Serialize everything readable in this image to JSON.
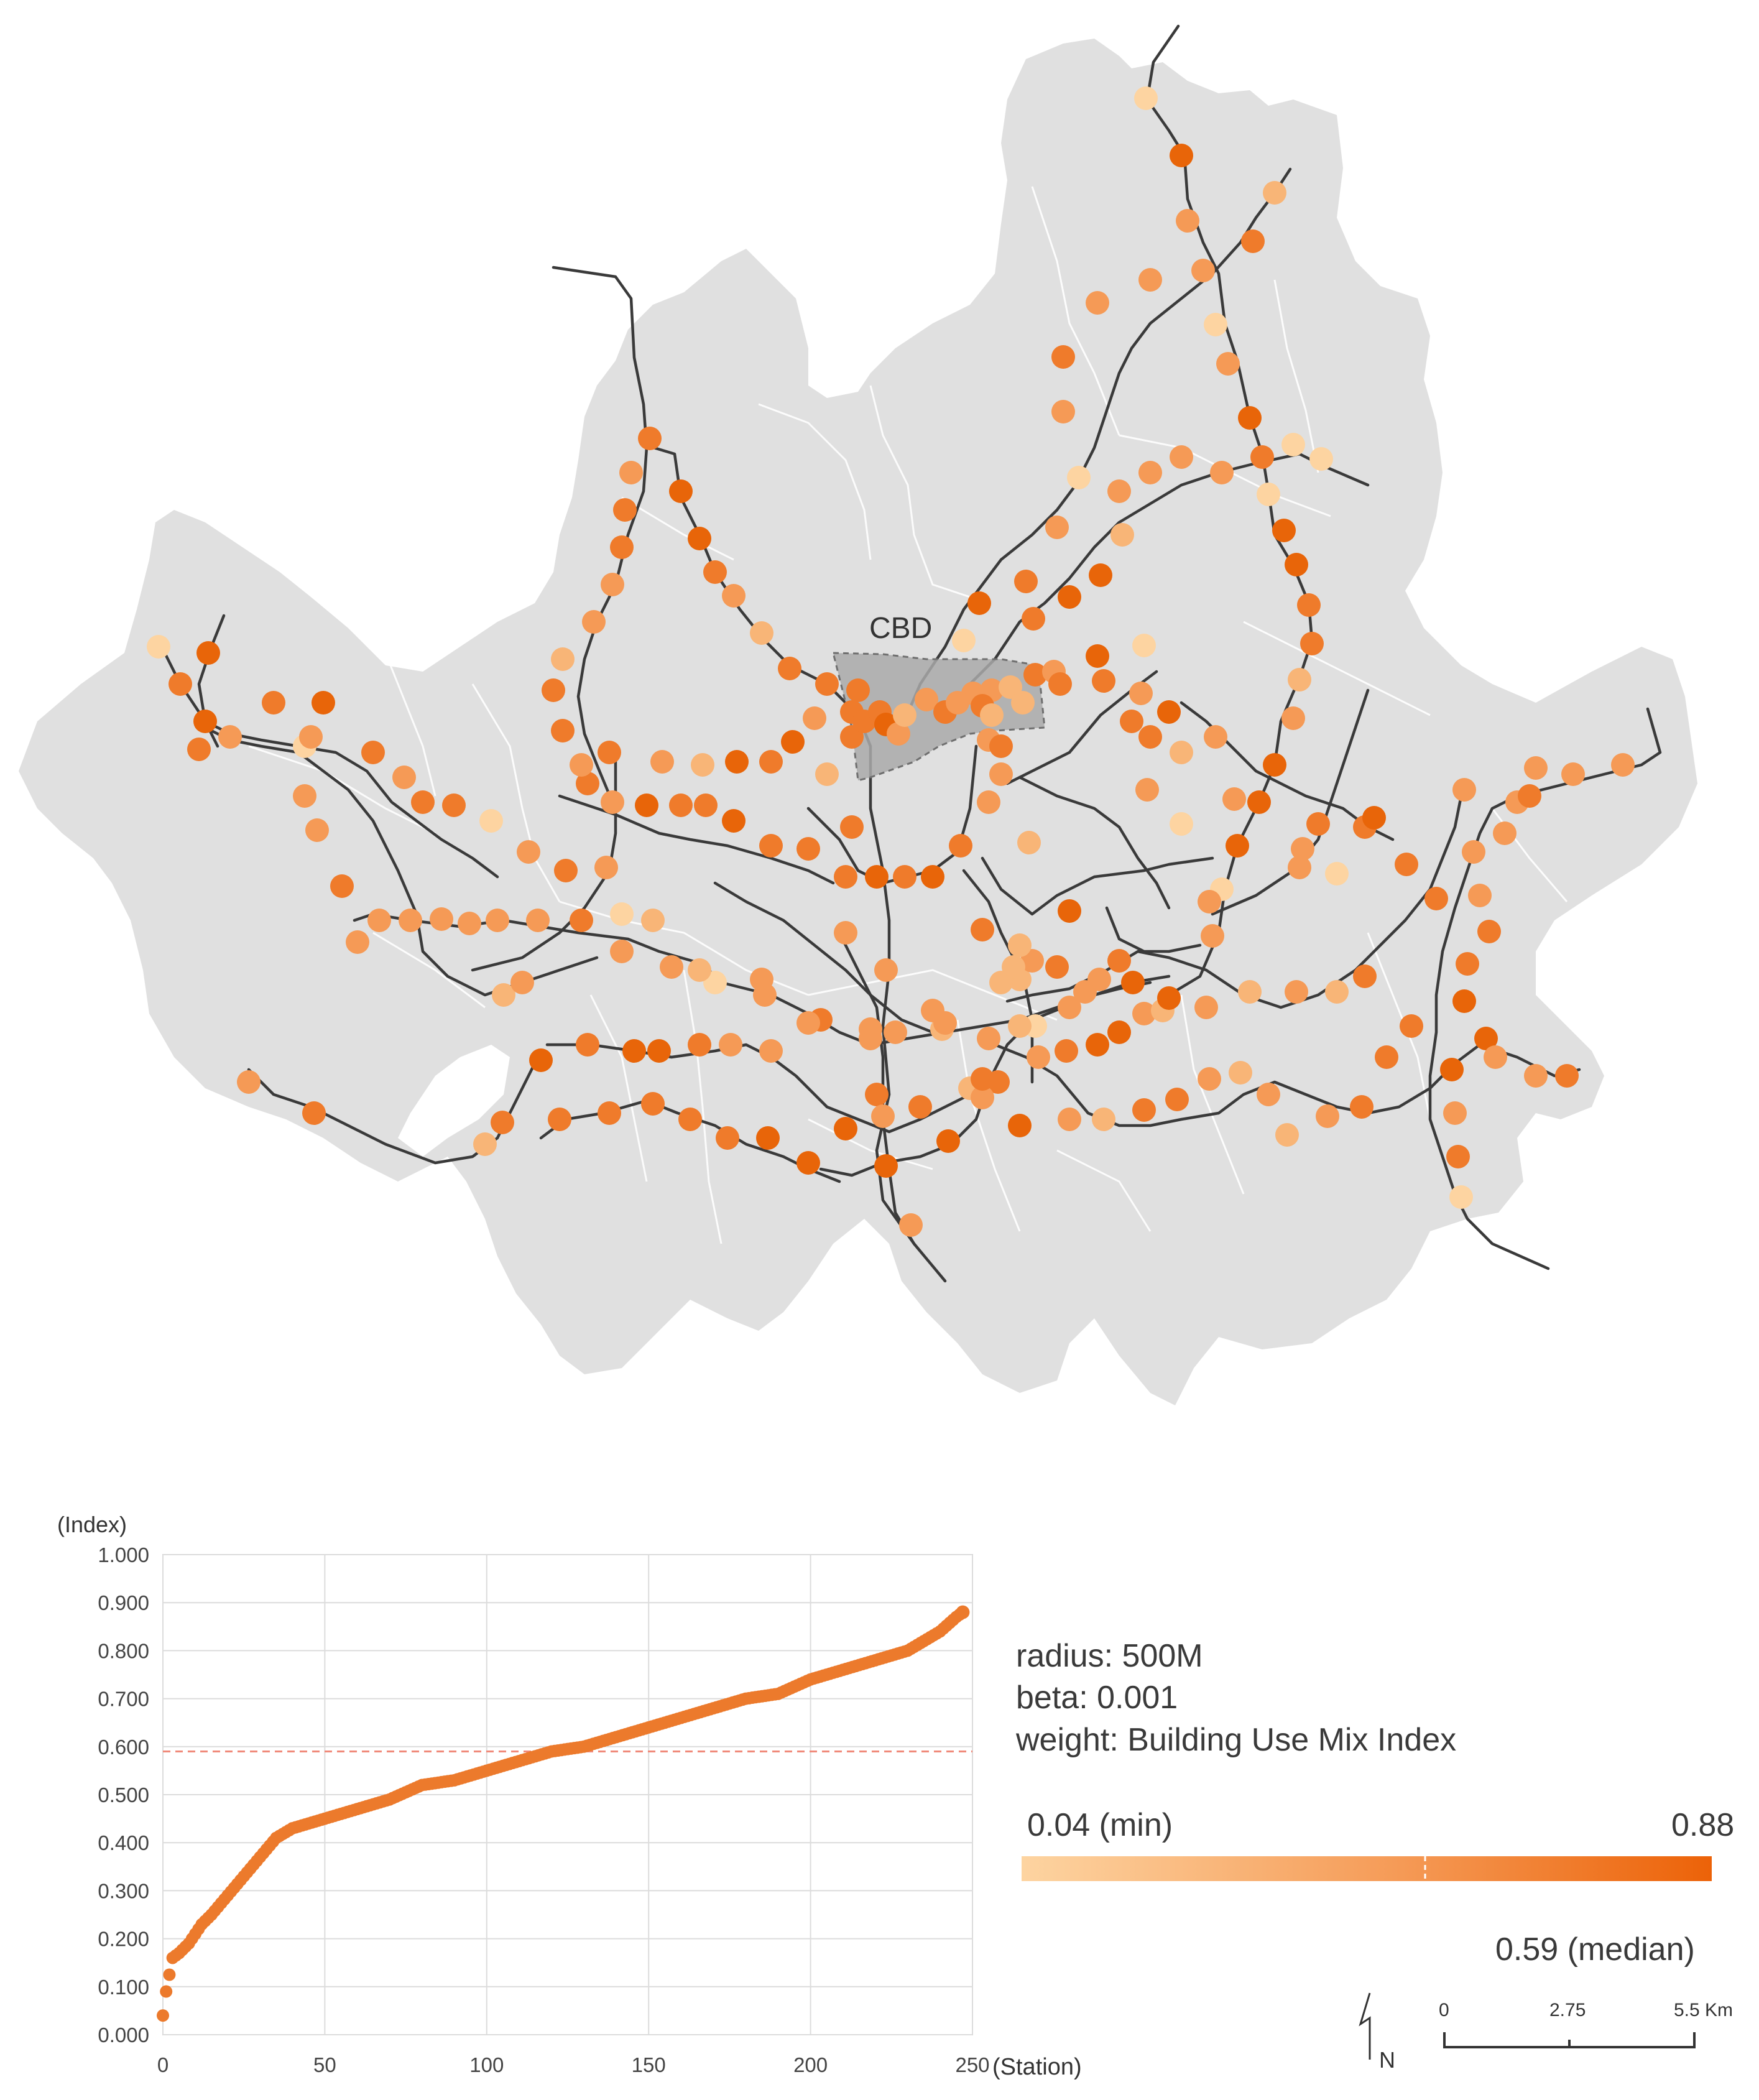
{
  "map": {
    "cbd_label": "CBD",
    "colors": {
      "land": "#e0e0e0",
      "district_line": "#ffffff",
      "rail": "#333333",
      "cbd_fill": "#a9a9a9"
    },
    "color_scale": {
      "min_color": "#fdd4a1",
      "mid_color": "#f59a56",
      "max_color": "#ec6208"
    }
  },
  "legend": {
    "params": [
      "radius: 500M",
      "beta: 0.001",
      "weight: Building Use Mix Index"
    ],
    "min_label": "0.04 (min)",
    "max_label": "0.88",
    "median_label": "0.59 (median)",
    "min_value": 0.04,
    "max_value": 0.88,
    "median_value": 0.59
  },
  "scalebar": {
    "north_label": "N",
    "ticks": [
      "0",
      "2.75",
      "5.5"
    ],
    "unit": "Km"
  },
  "chart_data": {
    "type": "scatter",
    "title": "",
    "ylabel": "(Index)",
    "xlabel": "(Station)",
    "xlim": [
      0,
      250
    ],
    "ylim": [
      0,
      1.0
    ],
    "x_ticks": [
      "0",
      "50",
      "100",
      "150",
      "200",
      "250"
    ],
    "y_ticks": [
      "0.000",
      "0.100",
      "0.200",
      "0.300",
      "0.400",
      "0.500",
      "0.600",
      "0.700",
      "0.800",
      "0.900",
      "1.000"
    ],
    "reference_line": {
      "y": 0.59,
      "style": "dashed"
    },
    "series": [
      {
        "color": "#ec7a2c",
        "points": [
          [
            0,
            0.04
          ],
          [
            1,
            0.09
          ],
          [
            3,
            0.16
          ],
          [
            5,
            0.17
          ],
          [
            8,
            0.19
          ],
          [
            12,
            0.23
          ],
          [
            15,
            0.25
          ],
          [
            20,
            0.29
          ],
          [
            25,
            0.33
          ],
          [
            30,
            0.37
          ],
          [
            35,
            0.41
          ],
          [
            40,
            0.43
          ],
          [
            45,
            0.44
          ],
          [
            50,
            0.45
          ],
          [
            60,
            0.47
          ],
          [
            70,
            0.49
          ],
          [
            80,
            0.52
          ],
          [
            90,
            0.53
          ],
          [
            100,
            0.55
          ],
          [
            110,
            0.57
          ],
          [
            120,
            0.59
          ],
          [
            130,
            0.6
          ],
          [
            140,
            0.62
          ],
          [
            150,
            0.64
          ],
          [
            160,
            0.66
          ],
          [
            170,
            0.68
          ],
          [
            180,
            0.7
          ],
          [
            190,
            0.71
          ],
          [
            200,
            0.74
          ],
          [
            210,
            0.76
          ],
          [
            220,
            0.78
          ],
          [
            230,
            0.8
          ],
          [
            240,
            0.84
          ],
          [
            245,
            0.87
          ],
          [
            247,
            0.88
          ]
        ]
      }
    ]
  }
}
